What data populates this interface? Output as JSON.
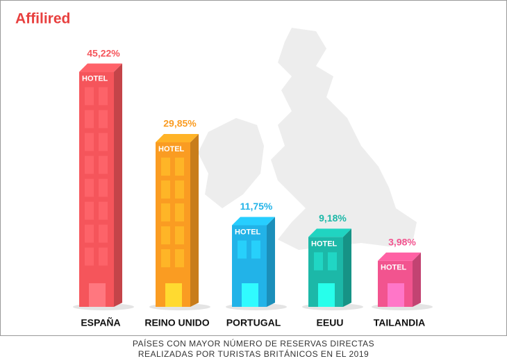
{
  "logo": "Affilired",
  "chart_data": {
    "type": "bar",
    "caption": [
      "PAÍSES CON MAYOR NÚMERO DE RESERVAS DIRECTAS",
      "REALIZADAS POR TURISTAS BRITÁNICOS EN EL 2019"
    ],
    "building_label": "HOTEL",
    "categories": [
      "ESPAÑA",
      "REINO UNIDO",
      "PORTUGAL",
      "EEUU",
      "TAILANDIA"
    ],
    "values": [
      45.22,
      29.85,
      11.75,
      9.18,
      3.98
    ],
    "value_labels": [
      "45,22%",
      "29,85%",
      "11,75%",
      "9,18%",
      "3,98%"
    ],
    "colors": [
      "#f5555b",
      "#fa9c22",
      "#22b3e8",
      "#1cb8a8",
      "#f2548f"
    ]
  }
}
